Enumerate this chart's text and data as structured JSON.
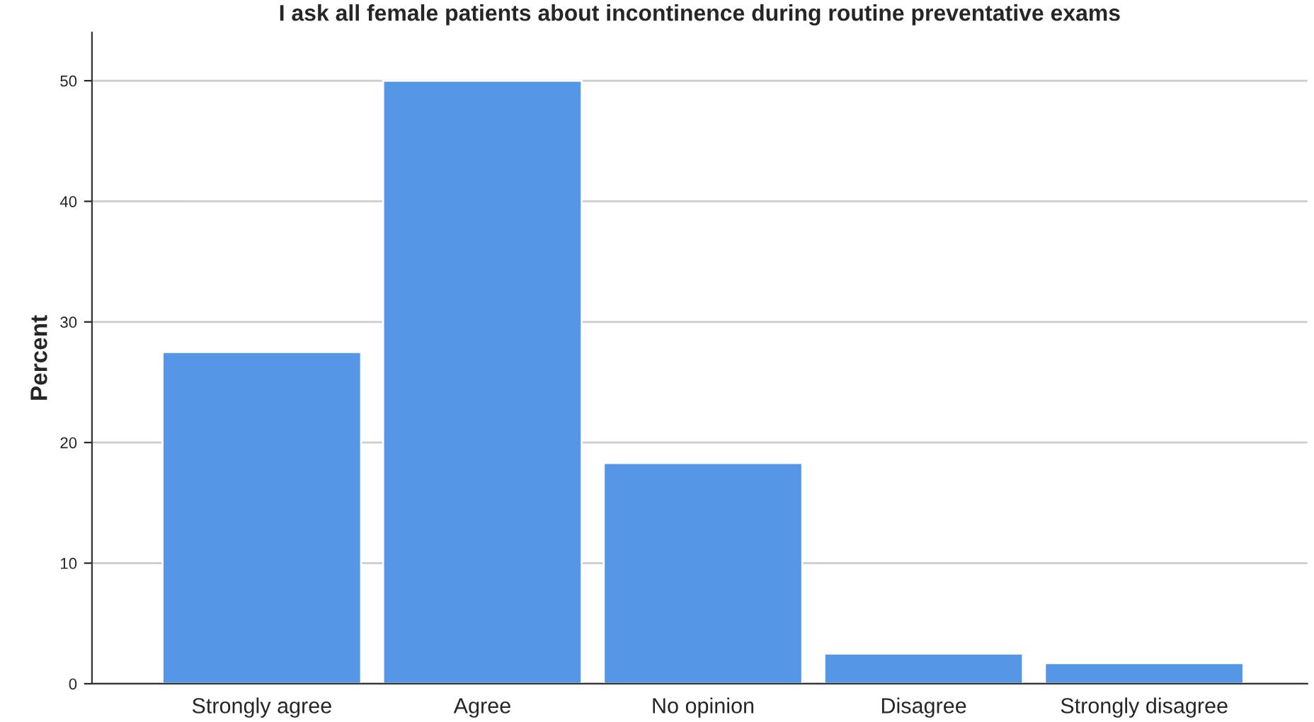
{
  "chart_data": {
    "type": "bar",
    "title": "I ask all female patients about incontinence during routine preventative exams",
    "ylabel": "Percent",
    "categories": [
      "Strongly agree",
      "Agree",
      "No opinion",
      "Disagree",
      "Strongly disagree"
    ],
    "values": [
      27.5,
      50,
      18.3,
      2.5,
      1.7
    ],
    "color": "#5596e6",
    "ylim": [
      0,
      54
    ],
    "yticks": [
      0,
      10,
      20,
      30,
      40,
      50
    ],
    "grid": "y"
  }
}
